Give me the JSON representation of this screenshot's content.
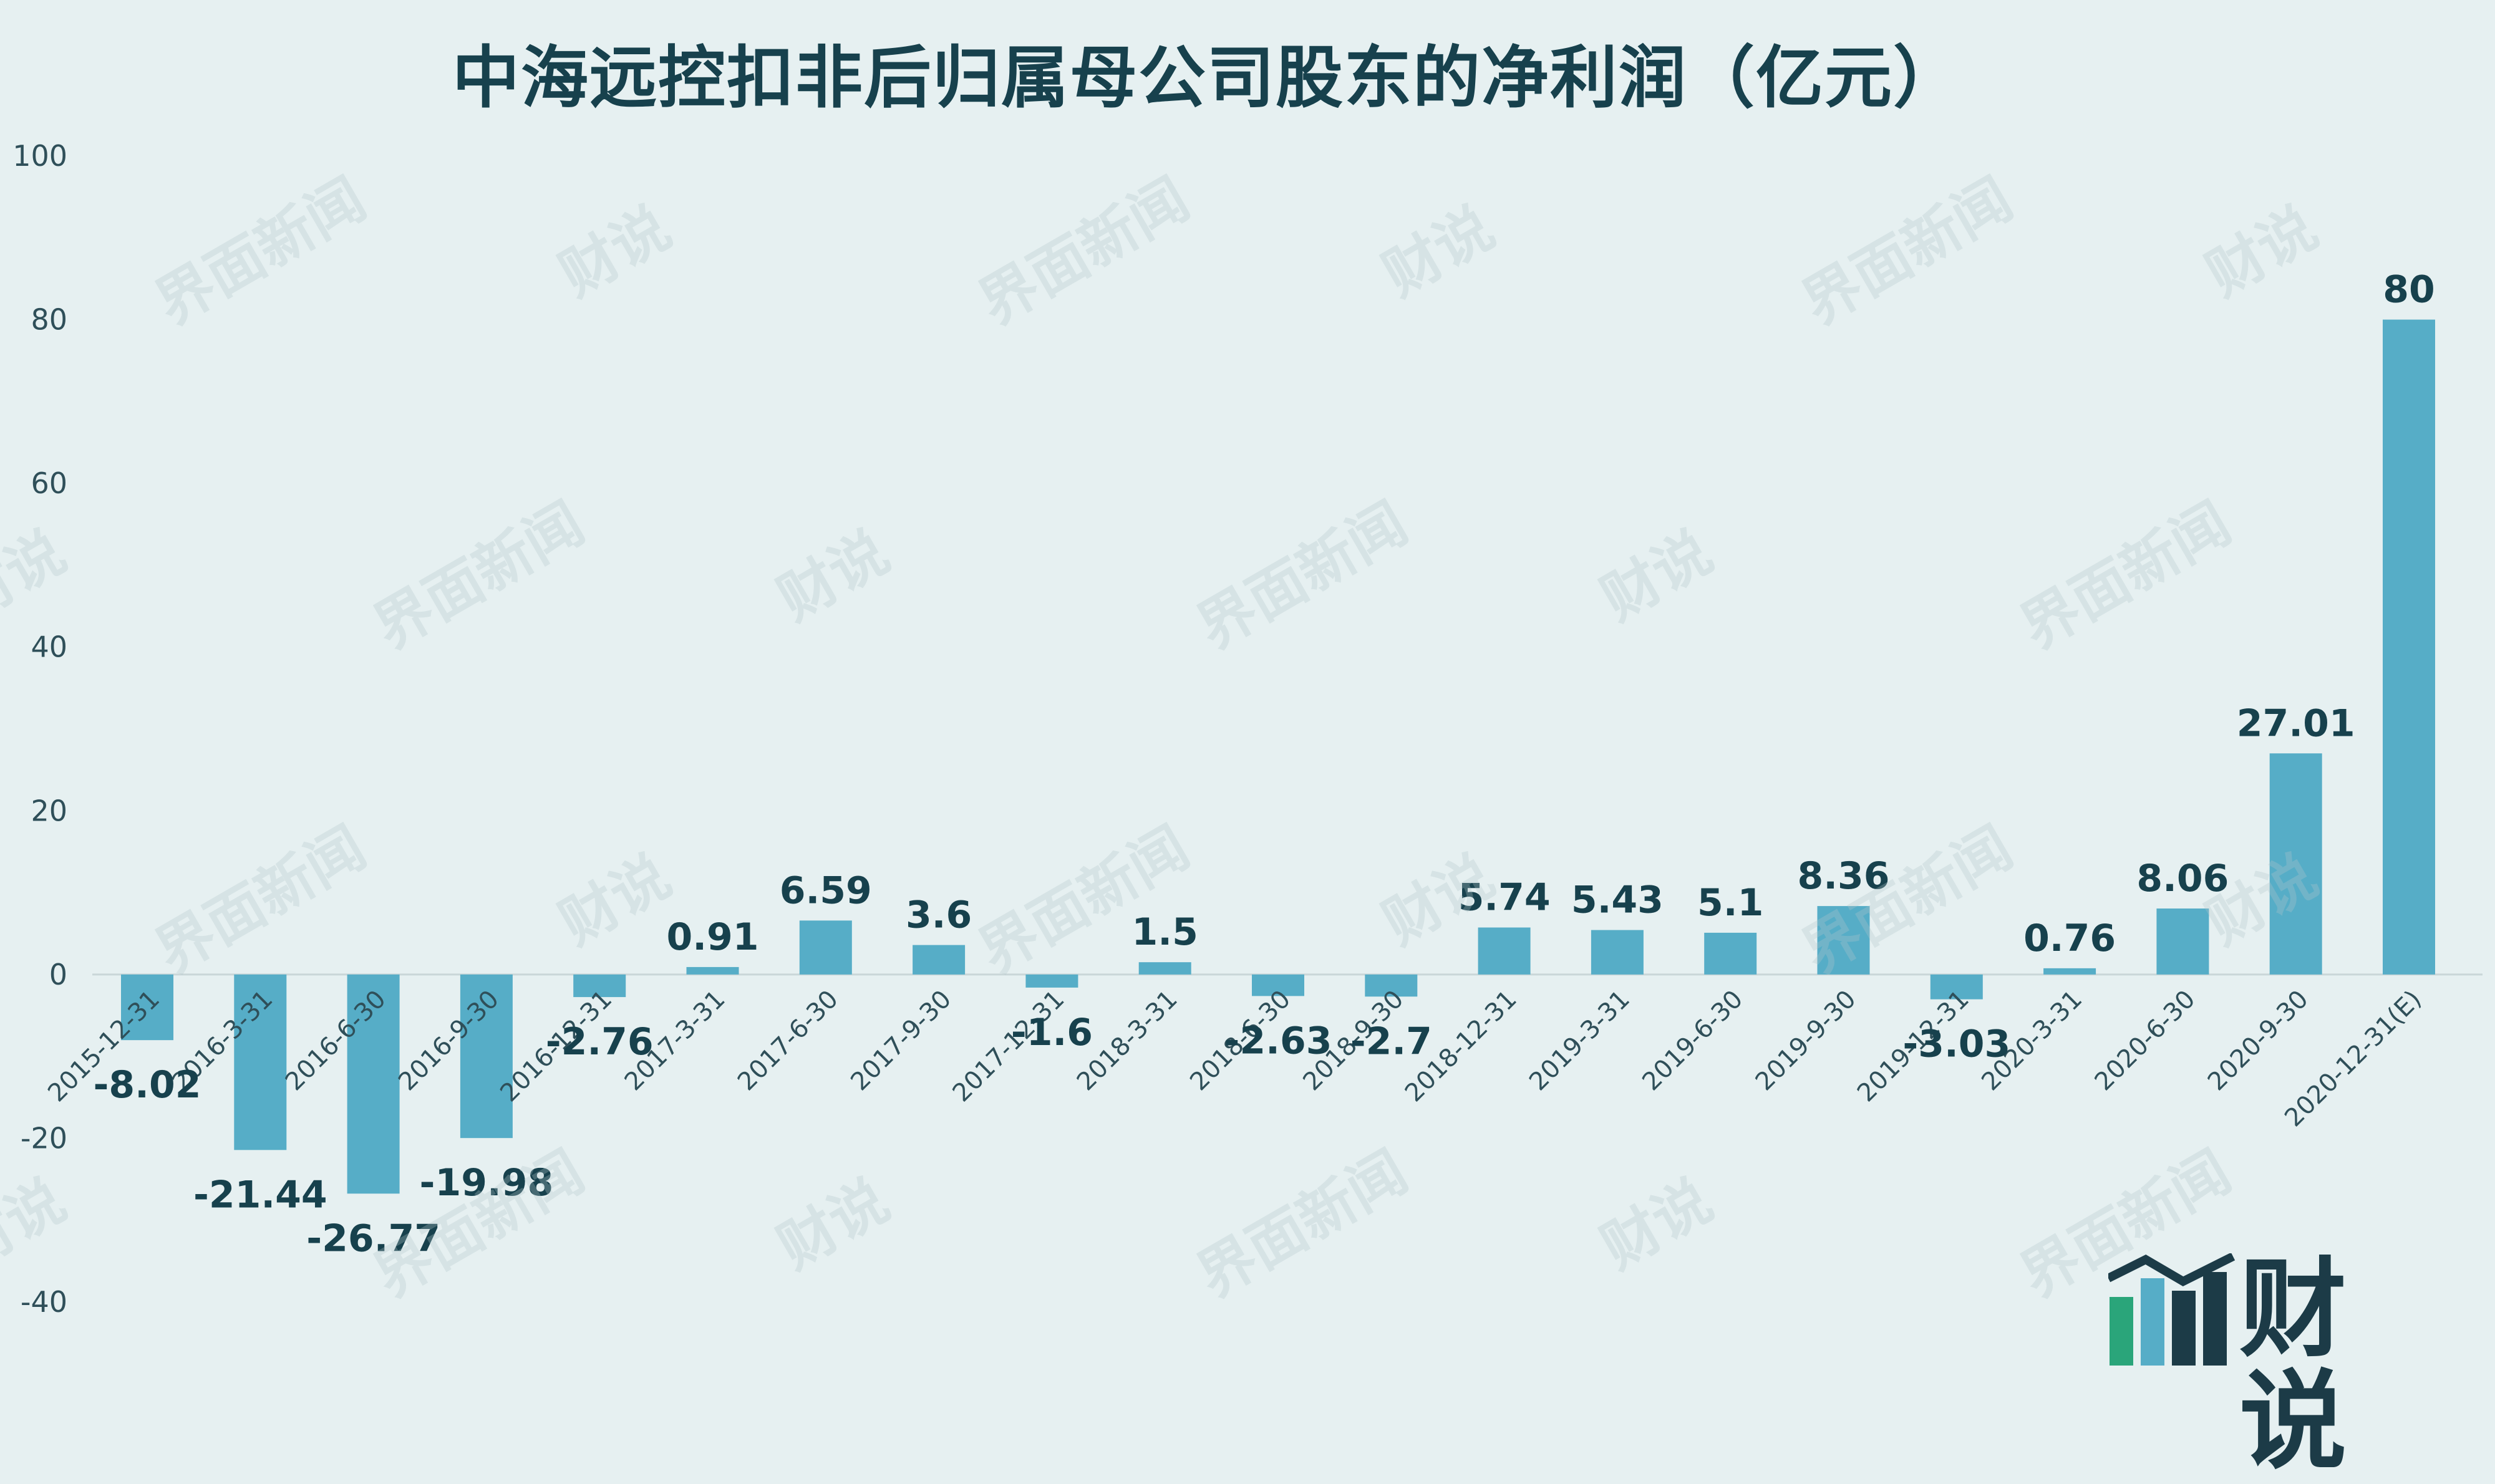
{
  "chart_data": {
    "type": "bar",
    "title": "中海远控扣非后归属母公司股东的净利润（亿元）",
    "xlabel": "",
    "ylabel": "",
    "ylim": [
      -40,
      100
    ],
    "yticks": [
      100,
      80,
      60,
      40,
      20,
      0,
      -20,
      -40
    ],
    "grid": false,
    "legend": "none",
    "bar_color": "#56adc7",
    "categories": [
      "2015-12-31",
      "2016-3-31",
      "2016-6-30",
      "2016-9-30",
      "2016-12-31",
      "2017-3-31",
      "2017-6-30",
      "2017-9-30",
      "2017-12-31",
      "2018-3-31",
      "2018-6-30",
      "2018-9-30",
      "2018-12-31",
      "2019-3-31",
      "2019-6-30",
      "2019-9-30",
      "2019-12-31",
      "2020-3-31",
      "2020-6-30",
      "2020-9-30",
      "2020-12-31(E)"
    ],
    "values": [
      -8.02,
      -21.44,
      -26.77,
      -19.98,
      -2.76,
      0.91,
      6.59,
      3.6,
      -1.6,
      1.5,
      -2.63,
      -2.7,
      5.74,
      5.43,
      5.1,
      8.36,
      -3.03,
      0.76,
      8.06,
      27.01,
      80
    ],
    "data_labels": [
      "-8.02",
      "-21.44",
      "-26.77",
      "-19.98",
      "-2.76",
      "0.91",
      "6.59",
      "3.6",
      "-1.6",
      "1.5",
      "-2.63",
      "-2.7",
      "5.74",
      "5.43",
      "5.1",
      "8.36",
      "-3.03",
      "0.76",
      "8.06",
      "27.01",
      "80"
    ]
  },
  "watermark": {
    "text_a": "界面新闻",
    "text_b": "财说"
  },
  "logo": {
    "text": "财说",
    "colors": [
      "#2aa57a",
      "#1c3b47"
    ]
  }
}
